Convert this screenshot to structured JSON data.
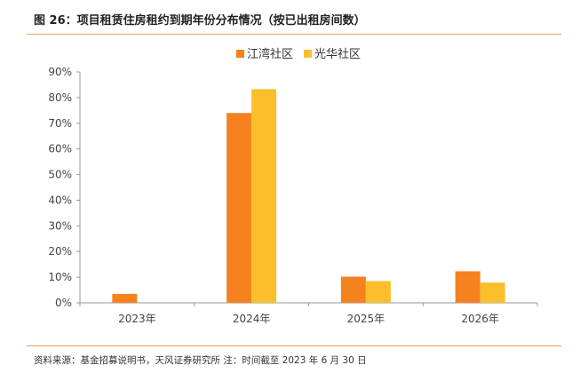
{
  "header": {
    "title": "图 26：项目租赁住房租约到期年份分布情况（按已出租房间数）"
  },
  "footer": {
    "source": "资料来源：基金招募说明书，天风证券研究所    注：时间截至 2023 年 6 月 30 日"
  },
  "colors": {
    "accent_rule": "#e8a15a"
  },
  "chart_data": {
    "type": "bar",
    "title": "",
    "xlabel": "",
    "ylabel": "",
    "categories": [
      "2023年",
      "2024年",
      "2025年",
      "2026年"
    ],
    "series": [
      {
        "name": "江湾社区",
        "color": "#f5821f",
        "values": [
          3.5,
          74,
          10.2,
          12.3
        ]
      },
      {
        "name": "光华社区",
        "color": "#fbbf2c",
        "values": [
          0,
          83.3,
          8.5,
          7.9
        ]
      }
    ],
    "ylim": [
      0,
      90
    ],
    "yticks": [
      "0%",
      "10%",
      "20%",
      "30%",
      "40%",
      "50%",
      "60%",
      "70%",
      "80%",
      "90%"
    ],
    "grid": false,
    "legend": "top-center"
  }
}
